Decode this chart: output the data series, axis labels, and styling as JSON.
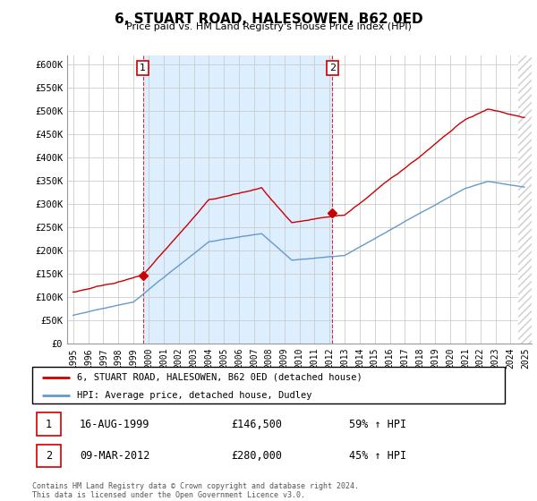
{
  "title": "6, STUART ROAD, HALESOWEN, B62 0ED",
  "subtitle": "Price paid vs. HM Land Registry's House Price Index (HPI)",
  "legend_line1": "6, STUART ROAD, HALESOWEN, B62 0ED (detached house)",
  "legend_line2": "HPI: Average price, detached house, Dudley",
  "transaction1_date": "16-AUG-1999",
  "transaction1_price": "£146,500",
  "transaction1_hpi": "59% ↑ HPI",
  "transaction2_date": "09-MAR-2012",
  "transaction2_price": "£280,000",
  "transaction2_hpi": "45% ↑ HPI",
  "footer": "Contains HM Land Registry data © Crown copyright and database right 2024.\nThis data is licensed under the Open Government Licence v3.0.",
  "red_color": "#cc0000",
  "blue_color": "#6699cc",
  "light_blue_fill": "#ddeeff",
  "ylim": [
    0,
    620000
  ],
  "yticks": [
    0,
    50000,
    100000,
    150000,
    200000,
    250000,
    300000,
    350000,
    400000,
    450000,
    500000,
    550000,
    600000
  ],
  "ytick_labels": [
    "£0",
    "£50K",
    "£100K",
    "£150K",
    "£200K",
    "£250K",
    "£300K",
    "£350K",
    "£400K",
    "£450K",
    "£500K",
    "£550K",
    "£600K"
  ],
  "xtick_years": [
    1995,
    1996,
    1997,
    1998,
    1999,
    2000,
    2001,
    2002,
    2003,
    2004,
    2005,
    2006,
    2007,
    2008,
    2009,
    2010,
    2011,
    2012,
    2013,
    2014,
    2015,
    2016,
    2017,
    2018,
    2019,
    2020,
    2021,
    2022,
    2023,
    2024,
    2025
  ],
  "xlim_min": 1994.6,
  "xlim_max": 2025.4,
  "trans1_x": 1999.62,
  "trans1_y": 146500,
  "trans2_x": 2012.19,
  "trans2_y": 280000,
  "hatch_start": 2024.5,
  "background_color": "#f0f4ff"
}
